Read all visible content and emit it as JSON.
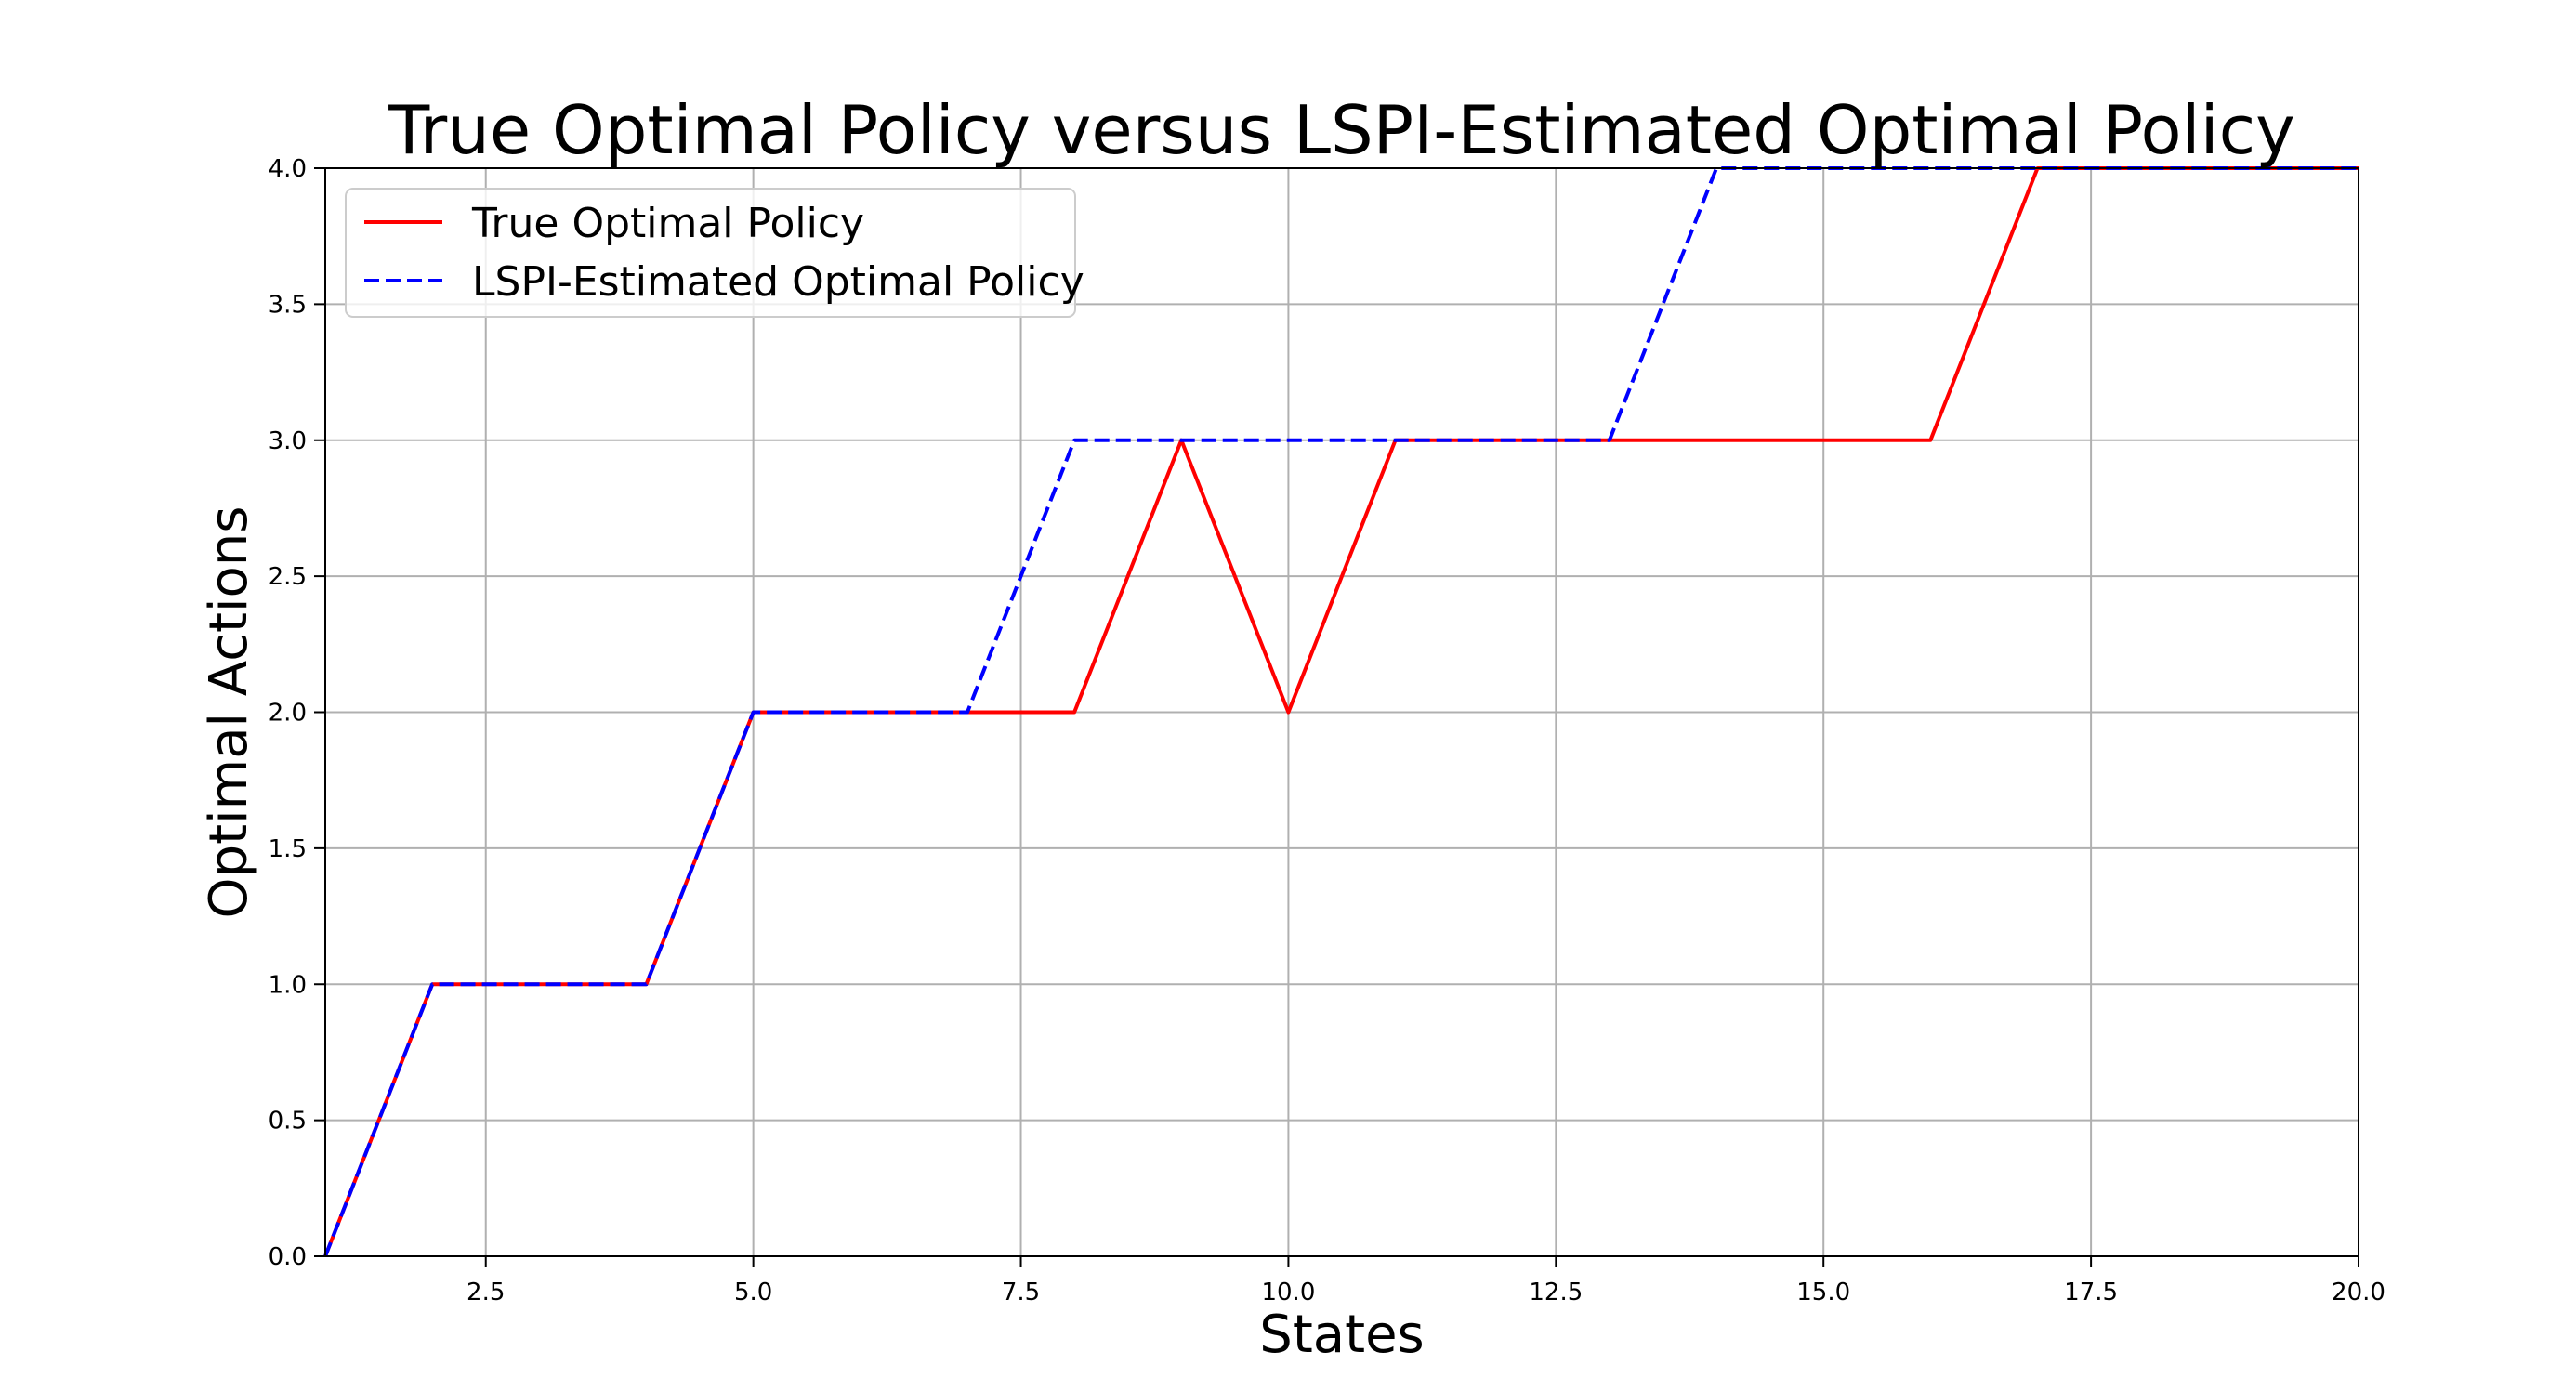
{
  "chart_data": {
    "type": "line",
    "title": "True Optimal Policy versus LSPI-Estimated Optimal Policy",
    "xlabel": "States",
    "ylabel": "Optimal Actions",
    "xlim": [
      1,
      20
    ],
    "ylim": [
      0,
      4
    ],
    "grid": true,
    "legend_position": "top-left",
    "xticks": [
      2.5,
      5.0,
      7.5,
      10.0,
      12.5,
      15.0,
      17.5,
      20.0
    ],
    "xtick_labels": [
      "2.5",
      "5.0",
      "7.5",
      "10.0",
      "12.5",
      "15.0",
      "17.5",
      "20.0"
    ],
    "yticks": [
      0.0,
      0.5,
      1.0,
      1.5,
      2.0,
      2.5,
      3.0,
      3.5,
      4.0
    ],
    "ytick_labels": [
      "0.0",
      "0.5",
      "1.0",
      "1.5",
      "2.0",
      "2.5",
      "3.0",
      "3.5",
      "4.0"
    ],
    "x": [
      1,
      2,
      3,
      4,
      5,
      6,
      7,
      8,
      9,
      10,
      11,
      12,
      13,
      14,
      15,
      16,
      17,
      18,
      19,
      20
    ],
    "series": [
      {
        "name": "True Optimal Policy",
        "color": "#ff0000",
        "style": "solid",
        "values": [
          0,
          1,
          1,
          1,
          2,
          2,
          2,
          2,
          3,
          2,
          3,
          3,
          3,
          3,
          3,
          3,
          4,
          4,
          4,
          4
        ]
      },
      {
        "name": "LSPI-Estimated Optimal Policy",
        "color": "#0000ff",
        "style": "dashed",
        "values": [
          0,
          1,
          1,
          1,
          2,
          2,
          2,
          3,
          3,
          3,
          3,
          3,
          3,
          4,
          4,
          4,
          4,
          4,
          4,
          4
        ]
      }
    ]
  }
}
